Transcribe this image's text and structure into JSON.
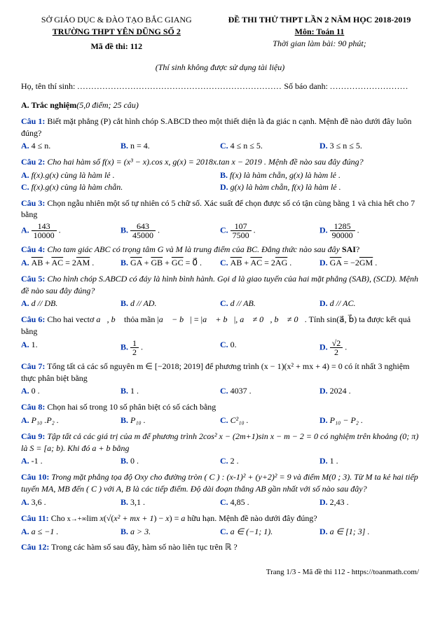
{
  "header": {
    "left1": "SỞ GIÁO DỤC & ĐÀO TẠO BẮC GIANG",
    "left2": "TRƯỜNG THPT YÊN DŨNG SỐ 2",
    "code_label": "Mã đề thi: 112",
    "right1": "ĐỀ THI THỬ THPT LẦN 2 NĂM HỌC 2018-2019",
    "right2": "Môn: Toán 11",
    "right3": "Thời gian làm bài: 90 phút;"
  },
  "note": "(Thí sinh không được sử dụng tài liệu)",
  "fill": {
    "name_label": "Họ, tên thí sinh:",
    "id_label": "Số báo danh:"
  },
  "section_a": "A. Trắc nghiệm",
  "section_a_meta": "(5,0 điểm; 25 câu)",
  "q1": {
    "label": "Câu 1:",
    "text": " Biết mặt phẳng (P) cắt hình chóp S.ABCD theo một thiết diện là đa giác n cạnh. Mệnh đề nào dưới đây luôn đúng?",
    "A": "4 ≤ n.",
    "B": "n = 4.",
    "C": "4 ≤ n ≤ 5.",
    "D": "3 ≤ n ≤ 5."
  },
  "q2": {
    "label": "Câu 2:",
    "text": " Cho hai hàm số f(x) = (x³ − x).cos x, g(x) = 2018x.tan x − 2019 . Mệnh đề nào sau đây đúng?",
    "A": "f(x).g(x) cùng là hàm lẻ .",
    "B": "f(x) là hàm chẵn, g(x) là hàm lẻ .",
    "C": "f(x).g(x) cùng là hàm chẵn.",
    "D": "g(x) là hàm chẵn, f(x) là hàm lẻ ."
  },
  "q3": {
    "label": "Câu 3:",
    "text": " Chọn ngẫu nhiên một số tự nhiên có 5 chữ số. Xác suất để chọn được số có tận cùng bằng 1 và chia hết cho 7 bằng",
    "A_num": "143",
    "A_den": "10000",
    "B_num": "643",
    "B_den": "45000",
    "C_num": "107",
    "C_den": "7500",
    "D_num": "1285",
    "D_den": "90000"
  },
  "q4": {
    "label": "Câu 4:",
    "text": " Cho tam giác ABC có trọng tâm G và M là trung điểm của BC. Đẳng thức nào sau đây ",
    "sai": "SAI",
    "q": "?"
  },
  "q4o": {
    "A": "AB + AC = 2AM .",
    "B": "GA + GB + GC = 0 .",
    "C": "AB + AC = 2AG .",
    "D": "GA = −2GM ."
  },
  "q5": {
    "label": "Câu 5:",
    "text": " Cho hình chóp S.ABCD có đáy là hình bình hành. Gọi d là giao tuyến của hai mặt phẳng (SAB), (SCD). Mệnh đề nào sau đây đúng?",
    "A": "d // DB.",
    "B": "d // AD.",
    "C": "d // AB.",
    "D": "d // AC."
  },
  "q6": {
    "label": "Câu 6:",
    "text_a": " Cho hai vectơ ",
    "text_b": " thỏa mãn ",
    "text_c": ". Tính sin(a⃗, b⃗) ta được kết quả bằng",
    "A": "1.",
    "B_num": "1",
    "B_den": "2",
    "C": "0.",
    "D_num": "√2",
    "D_den": "2"
  },
  "q7": {
    "label": "Câu 7:",
    "text_a": " Tổng tất cả các số nguyên m ∈ [−2018; 2019] để phương trình (x − 1)(x² + mx + 4) = 0 có ít nhất 3 nghiệm thực phân biệt bằng",
    "A": "0 .",
    "B": "1 .",
    "C": "4037 .",
    "D": "2024 ."
  },
  "q8": {
    "label": "Câu 8:",
    "text": " Chọn hai số trong 10 số phân biệt có số cách bằng",
    "A": "P₁₀ .P₂ .",
    "B": "P₁₀ .",
    "C": "C²₁₀ .",
    "D": "P₁₀ − P₂ ."
  },
  "q9": {
    "label": "Câu 9:",
    "text": " Tập tất cả các giá trị của m để phương trình 2cos² x − (2m+1)sin x − m − 2 = 0 có nghiệm trên khoảng (0; π) là S = [a; b). Khi đó a + b bằng",
    "A": "-1 .",
    "B": "0 .",
    "C": "2 .",
    "D": "1 ."
  },
  "q10": {
    "label": "Câu 10:",
    "text": " Trong mặt phẳng tọa độ Oxy cho đường tròn ( C ) : (x-1)² + (y+2)² = 9 và điểm M(0 ; 3). Từ M ta kẻ hai tiếp tuyến MA, MB đến ( C ) với A, B là các tiếp điểm. Độ dài đoạn thẳng AB gần nhất với số nào sau đây?",
    "A": "3,6 .",
    "B": "3,1 .",
    "C": "4,85 .",
    "D": "2,43 ."
  },
  "q11": {
    "label": "Câu 11:",
    "text": " Cho lim x(√(x² + mx + 1) − x) = a hữu hạn. Mệnh đề nào dưới đây đúng?",
    "A": "a ≤ −1 .",
    "B": "a > 3.",
    "C": "a ∈ (−1; 1).",
    "D": "a ∈ [1; 3] ."
  },
  "q12": {
    "label": "Câu 12:",
    "text": " Trong các hàm số sau đây, hàm số nào liên tục trên ℝ ?"
  },
  "footer": "Trang 1/3 - Mã đề thi 112 - https://toanmath.com/"
}
